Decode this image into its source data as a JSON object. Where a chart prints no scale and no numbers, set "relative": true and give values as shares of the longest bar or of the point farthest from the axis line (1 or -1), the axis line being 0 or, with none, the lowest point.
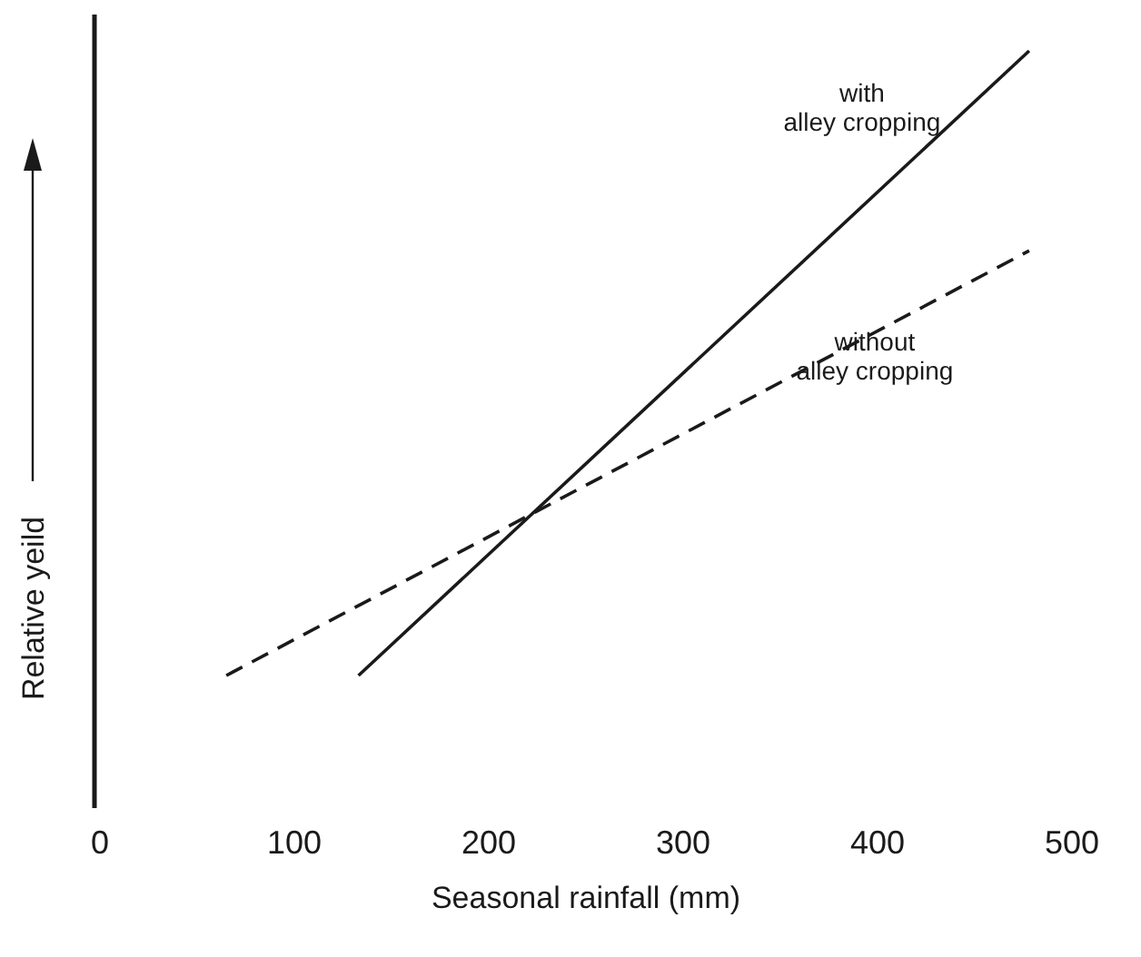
{
  "chart_data": {
    "type": "line",
    "relative": true,
    "xlabel": "Seasonal rainfall (mm)",
    "ylabel": "Relative yeild",
    "xlim": [
      0,
      500
    ],
    "xticks": [
      0,
      100,
      200,
      300,
      400,
      500
    ],
    "marker": "none",
    "series": [
      {
        "name": "with alley cropping",
        "color": "#1a1a1a",
        "line_style": "solid",
        "x": [
          133,
          478
        ],
        "values": [
          0,
          1
        ]
      },
      {
        "name": "without alley cropping",
        "color": "#1a1a1a",
        "line_style": "dashed",
        "x": [
          65,
          478
        ],
        "values": [
          0,
          0.68
        ]
      }
    ]
  }
}
